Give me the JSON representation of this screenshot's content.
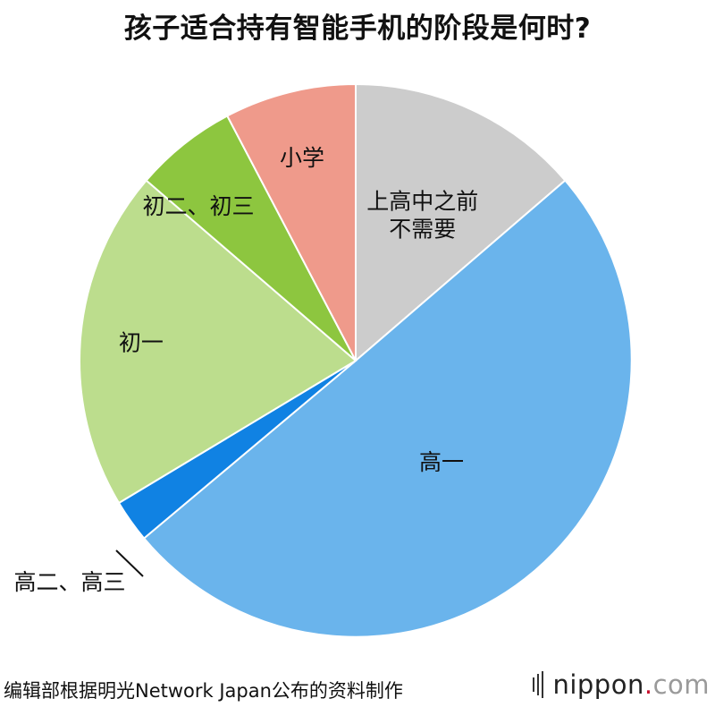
{
  "title": "孩子适合持有智能手机的阶段是何时?",
  "chart_data": {
    "type": "pie",
    "title": "孩子适合持有智能手机的阶段是何时?",
    "start_angle_deg": 0,
    "direction": "clockwise",
    "slices": [
      {
        "label": "上高中之前\n不需要",
        "value": 13.7,
        "color": "#cccccc"
      },
      {
        "label": "高一",
        "value": 50.2,
        "color": "#6ab4ec"
      },
      {
        "label": "高二、高三",
        "value": 2.5,
        "color": "#1082e3"
      },
      {
        "label": "初一",
        "value": 19.9,
        "color": "#bcdd8d"
      },
      {
        "label": "初二、初三",
        "value": 6.0,
        "color": "#8dc63f"
      },
      {
        "label": "小学",
        "value": 7.7,
        "color": "#ef9a8b"
      }
    ]
  },
  "footer": {
    "source": "编辑部根据明光Network Japan公布的资料制作",
    "brand_main": "nippon",
    "brand_dot": ".",
    "brand_tld": "com"
  }
}
